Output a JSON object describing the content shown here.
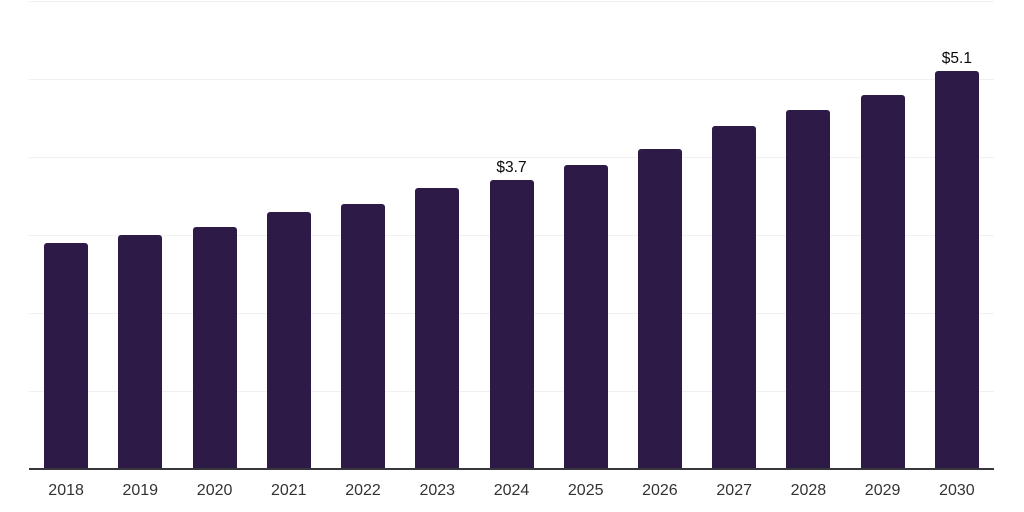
{
  "chart_data": {
    "type": "bar",
    "title": "",
    "xlabel": "",
    "ylabel": "",
    "categories": [
      "2018",
      "2019",
      "2020",
      "2021",
      "2022",
      "2023",
      "2024",
      "2025",
      "2026",
      "2027",
      "2028",
      "2029",
      "2030"
    ],
    "values": [
      2.9,
      3.0,
      3.1,
      3.3,
      3.4,
      3.6,
      3.7,
      3.9,
      4.1,
      4.4,
      4.6,
      4.8,
      5.1
    ],
    "point_labels": [
      "",
      "",
      "",
      "",
      "",
      "",
      "$3.7",
      "",
      "",
      "",
      "",
      "",
      "$5.1"
    ],
    "ylim": [
      0,
      6
    ],
    "gridline_step": 1,
    "grid": true,
    "legend": false,
    "colors": {
      "bar": "#2e1a47",
      "gridline": "#f0f0f2",
      "axis_line": "#37373d",
      "tick_label": "#333333",
      "value_label": "#0a0a0a",
      "background": "#ffffff"
    }
  }
}
